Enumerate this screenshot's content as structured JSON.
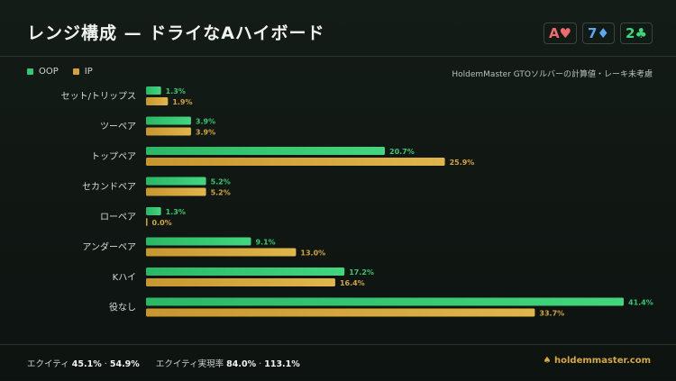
{
  "title": "レンジ構成 — ドライなAハイボード",
  "board": [
    {
      "rank": "A",
      "suit": "♥",
      "color": "#f06b6b"
    },
    {
      "rank": "7",
      "suit": "♦",
      "color": "#5aa8f0"
    },
    {
      "rank": "2",
      "suit": "♣",
      "color": "#3ed67c"
    }
  ],
  "legend": {
    "oop": "OOP",
    "ip": "IP"
  },
  "note": "HoldemMaster GTOソルバーの計算値・レーキ未考慮",
  "colors": {
    "oop": "#34c872",
    "ip": "#d3a43a"
  },
  "chart_data": {
    "type": "bar",
    "orientation": "horizontal",
    "categories": [
      "セット/トリップス",
      "ツーペア",
      "トップペア",
      "セカンドペア",
      "ローペア",
      "アンダーペア",
      "Kハイ",
      "役なし"
    ],
    "series": [
      {
        "name": "OOP",
        "values": [
          1.3,
          3.9,
          20.7,
          5.2,
          1.3,
          9.1,
          17.2,
          41.4
        ]
      },
      {
        "name": "IP",
        "values": [
          1.9,
          3.9,
          25.9,
          5.2,
          0.0,
          13.0,
          16.4,
          33.7
        ]
      }
    ],
    "unit": "%",
    "xlim": [
      0,
      41.4
    ]
  },
  "footer": {
    "equity_label": "エクイティ",
    "equity_oop": "45.1%",
    "sep": "·",
    "equity_ip": "54.9%",
    "realization_label": "エクイティ実現率",
    "realization_oop": "84.0%",
    "realization_ip": "113.1%",
    "site": "holdemmaster.com",
    "site_icon": "spade-icon"
  }
}
